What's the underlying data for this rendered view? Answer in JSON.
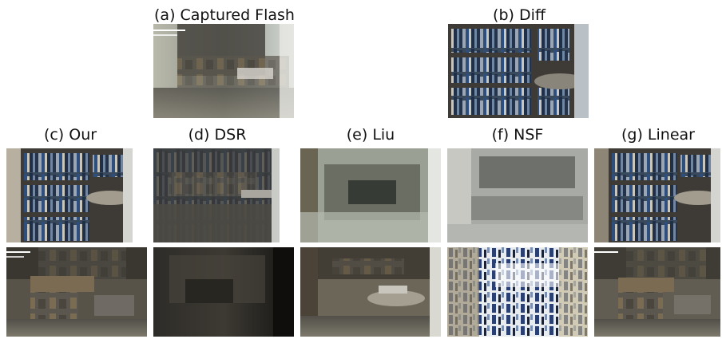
{
  "figure": {
    "top_row": {
      "captions": {
        "a": "(a) Captured Flash",
        "b": "(b) Diff"
      }
    },
    "method_captions": {
      "c": "(c) Our",
      "d": "(d) DSR",
      "e": "(e) Liu",
      "f": "(f) NSF",
      "g": "(g) Linear"
    },
    "palette": {
      "shelf_wood": "#3e3b37",
      "books_blue": "#2e4f7d",
      "library_floor": "#6e6a5e",
      "glass_grey": "#8c918b",
      "nsf_blue": "#2a3f72"
    }
  }
}
